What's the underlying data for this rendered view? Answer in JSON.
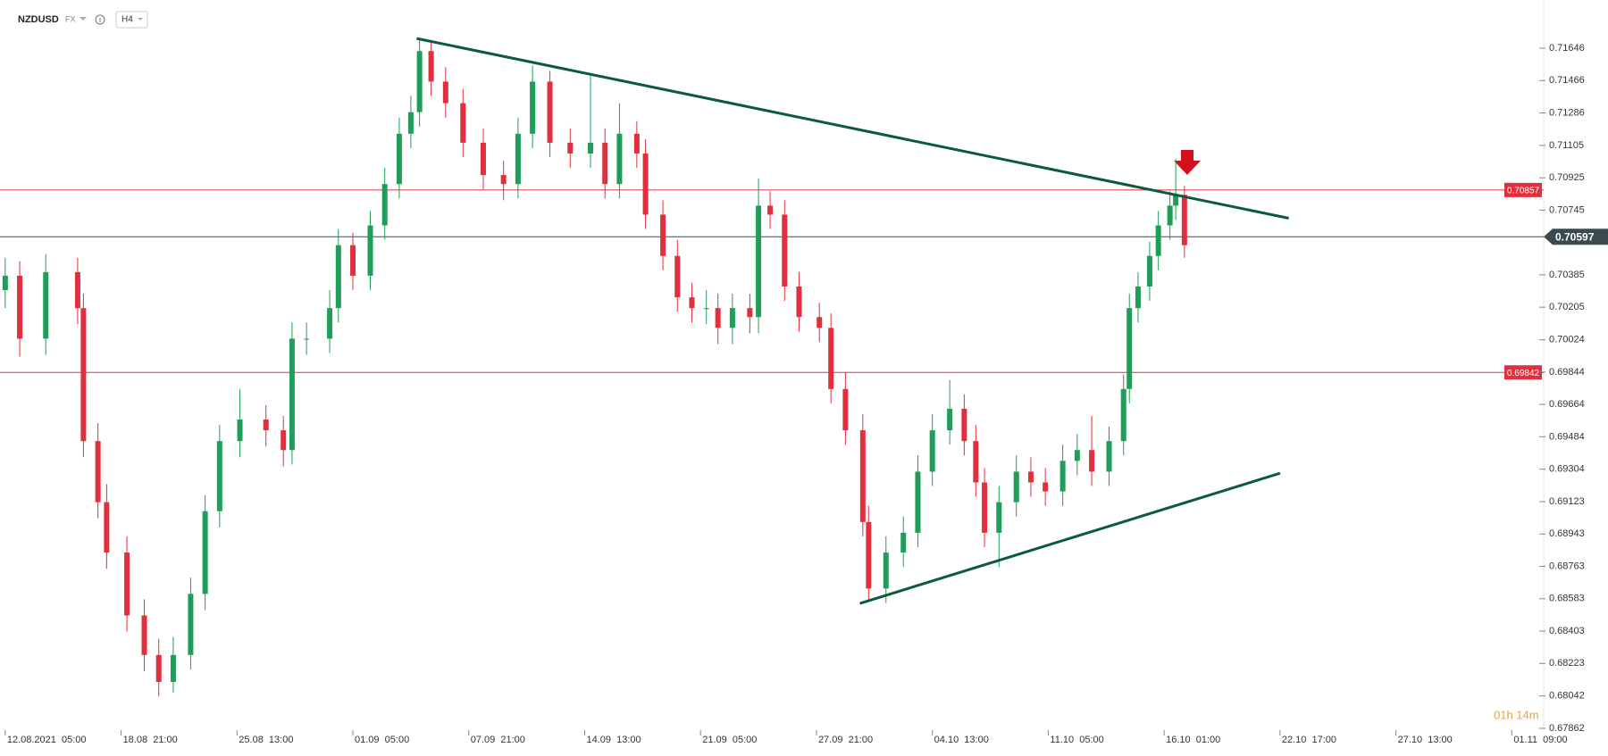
{
  "chart_data": {
    "type": "candlestick",
    "symbol": "NZDUSD",
    "market": "FX",
    "timeframe": "H4",
    "timer": "01h 14m",
    "up_color": "#1f9e5a",
    "down_color": "#e0303e",
    "x": [
      0,
      5,
      14,
      25,
      27,
      32,
      35,
      42,
      48,
      53,
      58,
      64,
      69,
      74,
      81,
      90,
      96,
      99,
      104,
      112,
      115,
      120,
      126,
      131,
      136,
      140,
      143,
      147,
      152,
      158,
      165,
      172,
      177,
      182,
      188,
      195,
      202,
      207,
      212,
      218,
      221,
      227,
      232,
      237,
      242,
      246,
      251,
      257,
      260,
      264,
      269,
      274,
      281,
      285,
      290,
      296,
      298,
      304,
      310,
      315,
      320,
      326,
      331,
      335,
      338,
      343,
      349,
      354,
      359,
      365,
      370,
      375,
      381,
      386,
      388,
      391,
      395,
      398,
      402,
      404,
      407
    ],
    "open": [
      0.703,
      0.7038,
      0.7003,
      0.704,
      0.702,
      0.6946,
      0.6912,
      0.6884,
      0.6849,
      0.6827,
      0.6812,
      0.6827,
      0.6861,
      0.6907,
      0.6946,
      0.6958,
      0.6952,
      0.6941,
      0.7003,
      0.7003,
      0.702,
      0.7055,
      0.7038,
      0.7066,
      0.7089,
      0.7117,
      0.7129,
      0.7163,
      0.7146,
      0.7134,
      0.7112,
      0.7094,
      0.7089,
      0.7117,
      0.7146,
      0.7112,
      0.7106,
      0.7112,
      0.7089,
      0.7117,
      0.7106,
      0.7072,
      0.7049,
      0.7026,
      0.702,
      0.702,
      0.7009,
      0.702,
      0.7015,
      0.7077,
      0.7072,
      0.7032,
      0.7015,
      0.7009,
      0.6975,
      0.6952,
      0.6901,
      0.6864,
      0.6884,
      0.6895,
      0.6929,
      0.6952,
      0.6964,
      0.6946,
      0.6923,
      0.6895,
      0.6912,
      0.6929,
      0.6923,
      0.6918,
      0.6935,
      0.6941,
      0.6929,
      0.6946,
      0.6975,
      0.702,
      0.7032,
      0.7049,
      0.7066,
      0.7077,
      0.7083
    ],
    "high": [
      0.7048,
      0.7046,
      0.705,
      0.7048,
      0.7028,
      0.6956,
      0.6922,
      0.6893,
      0.6858,
      0.6836,
      0.6837,
      0.687,
      0.6916,
      0.6955,
      0.6975,
      0.6966,
      0.696,
      0.7012,
      0.7012,
      0.703,
      0.7064,
      0.7062,
      0.7074,
      0.7098,
      0.7126,
      0.7138,
      0.717,
      0.7168,
      0.7154,
      0.7142,
      0.712,
      0.7102,
      0.7126,
      0.7155,
      0.7152,
      0.712,
      0.715,
      0.712,
      0.7134,
      0.7124,
      0.7114,
      0.708,
      0.7058,
      0.7034,
      0.703,
      0.7028,
      0.7028,
      0.7028,
      0.7092,
      0.7085,
      0.708,
      0.704,
      0.7023,
      0.7017,
      0.6984,
      0.6961,
      0.691,
      0.6893,
      0.6904,
      0.6938,
      0.6961,
      0.698,
      0.6972,
      0.6955,
      0.6931,
      0.6921,
      0.6938,
      0.6937,
      0.6931,
      0.6944,
      0.695,
      0.696,
      0.6954,
      0.6983,
      0.7028,
      0.704,
      0.7057,
      0.7074,
      0.7085,
      0.7103,
      0.7088
    ],
    "low": [
      0.702,
      0.6993,
      0.6994,
      0.7011,
      0.6937,
      0.6903,
      0.6875,
      0.684,
      0.6818,
      0.6804,
      0.6806,
      0.6819,
      0.6852,
      0.6898,
      0.6937,
      0.6943,
      0.6932,
      0.6933,
      0.6994,
      0.6995,
      0.7012,
      0.703,
      0.703,
      0.7058,
      0.7081,
      0.7109,
      0.7121,
      0.7138,
      0.7126,
      0.7104,
      0.7086,
      0.708,
      0.7081,
      0.7109,
      0.7104,
      0.7098,
      0.7098,
      0.7081,
      0.7081,
      0.7098,
      0.7064,
      0.7041,
      0.7018,
      0.7012,
      0.7011,
      0.7,
      0.7,
      0.7006,
      0.7006,
      0.7064,
      0.7024,
      0.7007,
      0.7001,
      0.6967,
      0.6944,
      0.6893,
      0.6857,
      0.6856,
      0.6876,
      0.6887,
      0.6921,
      0.6944,
      0.6938,
      0.6915,
      0.6887,
      0.6876,
      0.6904,
      0.6915,
      0.691,
      0.691,
      0.6927,
      0.6921,
      0.6921,
      0.6938,
      0.6967,
      0.7012,
      0.7024,
      0.7041,
      0.7058,
      0.7069,
      0.7048
    ],
    "close": [
      0.7038,
      0.7003,
      0.704,
      0.702,
      0.6946,
      0.6912,
      0.6884,
      0.6849,
      0.6827,
      0.6812,
      0.6827,
      0.6861,
      0.6907,
      0.6946,
      0.6958,
      0.6952,
      0.6941,
      0.7003,
      0.7003,
      0.702,
      0.7055,
      0.7038,
      0.7066,
      0.7089,
      0.7117,
      0.7129,
      0.7163,
      0.7146,
      0.7134,
      0.7112,
      0.7094,
      0.7089,
      0.7117,
      0.7146,
      0.7112,
      0.7106,
      0.7112,
      0.7089,
      0.7117,
      0.7106,
      0.7072,
      0.7049,
      0.7026,
      0.702,
      0.702,
      0.7009,
      0.702,
      0.7015,
      0.7077,
      0.7072,
      0.7032,
      0.7015,
      0.7009,
      0.6975,
      0.6952,
      0.6901,
      0.6864,
      0.6884,
      0.6895,
      0.6929,
      0.6952,
      0.6964,
      0.6946,
      0.6923,
      0.6895,
      0.6912,
      0.6929,
      0.6923,
      0.6918,
      0.6935,
      0.6941,
      0.6929,
      0.6946,
      0.6975,
      0.702,
      0.7032,
      0.7049,
      0.7066,
      0.7077,
      0.7083,
      0.7055
    ],
    "xlim": [
      -1.8,
      531
    ],
    "xticks": [
      {
        "value": 0,
        "label": "12.08.2021  05:00"
      },
      {
        "value": 40,
        "label": "18.08  21:00"
      },
      {
        "value": 80,
        "label": "25.08  13:00"
      },
      {
        "value": 120,
        "label": "01.09  05:00"
      },
      {
        "value": 160,
        "label": "07.09  21:00"
      },
      {
        "value": 200,
        "label": "14.09  13:00"
      },
      {
        "value": 240,
        "label": "21.09  05:00"
      },
      {
        "value": 280,
        "label": "27.09  21:00"
      },
      {
        "value": 320,
        "label": "04.10  13:00"
      },
      {
        "value": 360,
        "label": "11.10  05:00"
      },
      {
        "value": 400,
        "label": "16.10  01:00"
      },
      {
        "value": 440,
        "label": "22.10  17:00"
      },
      {
        "value": 480,
        "label": "27.10  13:00"
      },
      {
        "value": 520,
        "label": "01.11  09:00"
      }
    ],
    "ylim": [
      0.67852,
      0.71914
    ],
    "yticks": [
      0.71646,
      0.71466,
      0.71286,
      0.71105,
      0.70925,
      0.70745,
      0.70385,
      0.70205,
      0.70024,
      0.69844,
      0.69664,
      0.69484,
      0.69304,
      0.69123,
      0.68943,
      0.68763,
      0.68583,
      0.68403,
      0.68223,
      0.68042,
      0.67862
    ],
    "levels": [
      0.70857,
      0.69842
    ],
    "level_color": "#e0303e",
    "current_price": 0.70597,
    "current_color": "#3b4a50",
    "trendlines": [
      {
        "x": [
          142,
          443
        ],
        "y": [
          0.717,
          0.707
        ]
      },
      {
        "x": [
          295,
          440
        ],
        "y": [
          0.68557,
          0.69281
        ]
      }
    ],
    "trendline_color": "#0b5a3c"
  }
}
